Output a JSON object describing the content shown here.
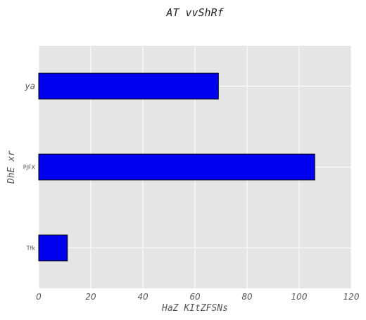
{
  "chart_data": {
    "type": "bar",
    "orientation": "horizontal",
    "title": "AT vvShRf",
    "xlabel": "HaZ KItZFSNs",
    "ylabel": "DhE xr",
    "categories": [
      "Tfk",
      "PJFX",
      "ya"
    ],
    "values": [
      11,
      106,
      69
    ],
    "xlim": [
      0,
      120
    ],
    "xticks": [
      "0",
      "20",
      "40",
      "60",
      "80",
      "100",
      "120"
    ],
    "grid": true,
    "bar_color": "#0000ee",
    "edge_color": "#000000",
    "background_color": "#e5e5e5",
    "grid_color": "#ffffff"
  }
}
